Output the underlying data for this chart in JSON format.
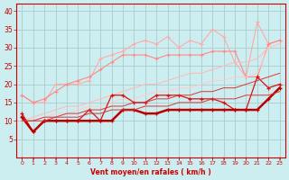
{
  "x": [
    0,
    1,
    2,
    3,
    4,
    5,
    6,
    7,
    8,
    9,
    10,
    11,
    12,
    13,
    14,
    15,
    16,
    17,
    18,
    19,
    20,
    21,
    22,
    23
  ],
  "bg_color": "#cceef0",
  "grid_color": "#aacccc",
  "xlabel": "Vent moyen/en rafales ( km/h )",
  "xlabel_color": "#cc0000",
  "tick_color": "#cc0000",
  "axis_color": "#cc0000",
  "ylim": [
    0,
    42
  ],
  "xlim": [
    -0.5,
    23.5
  ],
  "yticks": [
    5,
    10,
    15,
    20,
    25,
    30,
    35,
    40
  ],
  "y_rafales_max": [
    17,
    15,
    15,
    20,
    20,
    20,
    21,
    27,
    28,
    29,
    31,
    32,
    31,
    33,
    30,
    32,
    31,
    35,
    33,
    26,
    22,
    37,
    31,
    32
  ],
  "y_rafales_med": [
    17,
    15,
    16,
    18,
    20,
    21,
    22,
    24,
    26,
    28,
    28,
    28,
    27,
    28,
    28,
    28,
    28,
    29,
    29,
    29,
    22,
    22,
    31,
    32
  ],
  "y_trend_upper": [
    10,
    11,
    12,
    13,
    14,
    14,
    15,
    16,
    17,
    18,
    19,
    20,
    20,
    21,
    22,
    23,
    23,
    24,
    25,
    26,
    26,
    27,
    30,
    31
  ],
  "y_trend_lower": [
    10,
    10,
    11,
    12,
    12,
    13,
    14,
    14,
    15,
    16,
    16,
    17,
    18,
    18,
    19,
    19,
    20,
    21,
    21,
    22,
    22,
    23,
    30,
    31
  ],
  "y_moyen_active": [
    12,
    7,
    10,
    10,
    10,
    10,
    13,
    10,
    17,
    17,
    15,
    15,
    17,
    17,
    17,
    16,
    16,
    16,
    15,
    13,
    13,
    22,
    19,
    20
  ],
  "y_moyen_base": [
    11,
    7,
    10,
    10,
    10,
    10,
    10,
    10,
    10,
    13,
    13,
    12,
    12,
    13,
    13,
    13,
    13,
    13,
    13,
    13,
    13,
    13,
    16,
    19
  ],
  "y_trend_red_up": [
    10,
    10,
    11,
    11,
    12,
    12,
    13,
    13,
    14,
    14,
    15,
    15,
    16,
    16,
    17,
    17,
    18,
    18,
    19,
    19,
    20,
    21,
    22,
    23
  ],
  "y_trend_red_lo": [
    10,
    10,
    10,
    11,
    11,
    11,
    12,
    12,
    13,
    13,
    13,
    14,
    14,
    14,
    15,
    15,
    15,
    16,
    16,
    16,
    17,
    17,
    17,
    18
  ],
  "c_pink_light": "#ffaaaa",
  "c_pink_med": "#ff8888",
  "c_pink_trend1": "#ffbbbb",
  "c_pink_trend2": "#ffcccc",
  "c_red_dark": "#dd1111",
  "c_red_darkest": "#bb0000",
  "c_red_trend": "#dd3333"
}
